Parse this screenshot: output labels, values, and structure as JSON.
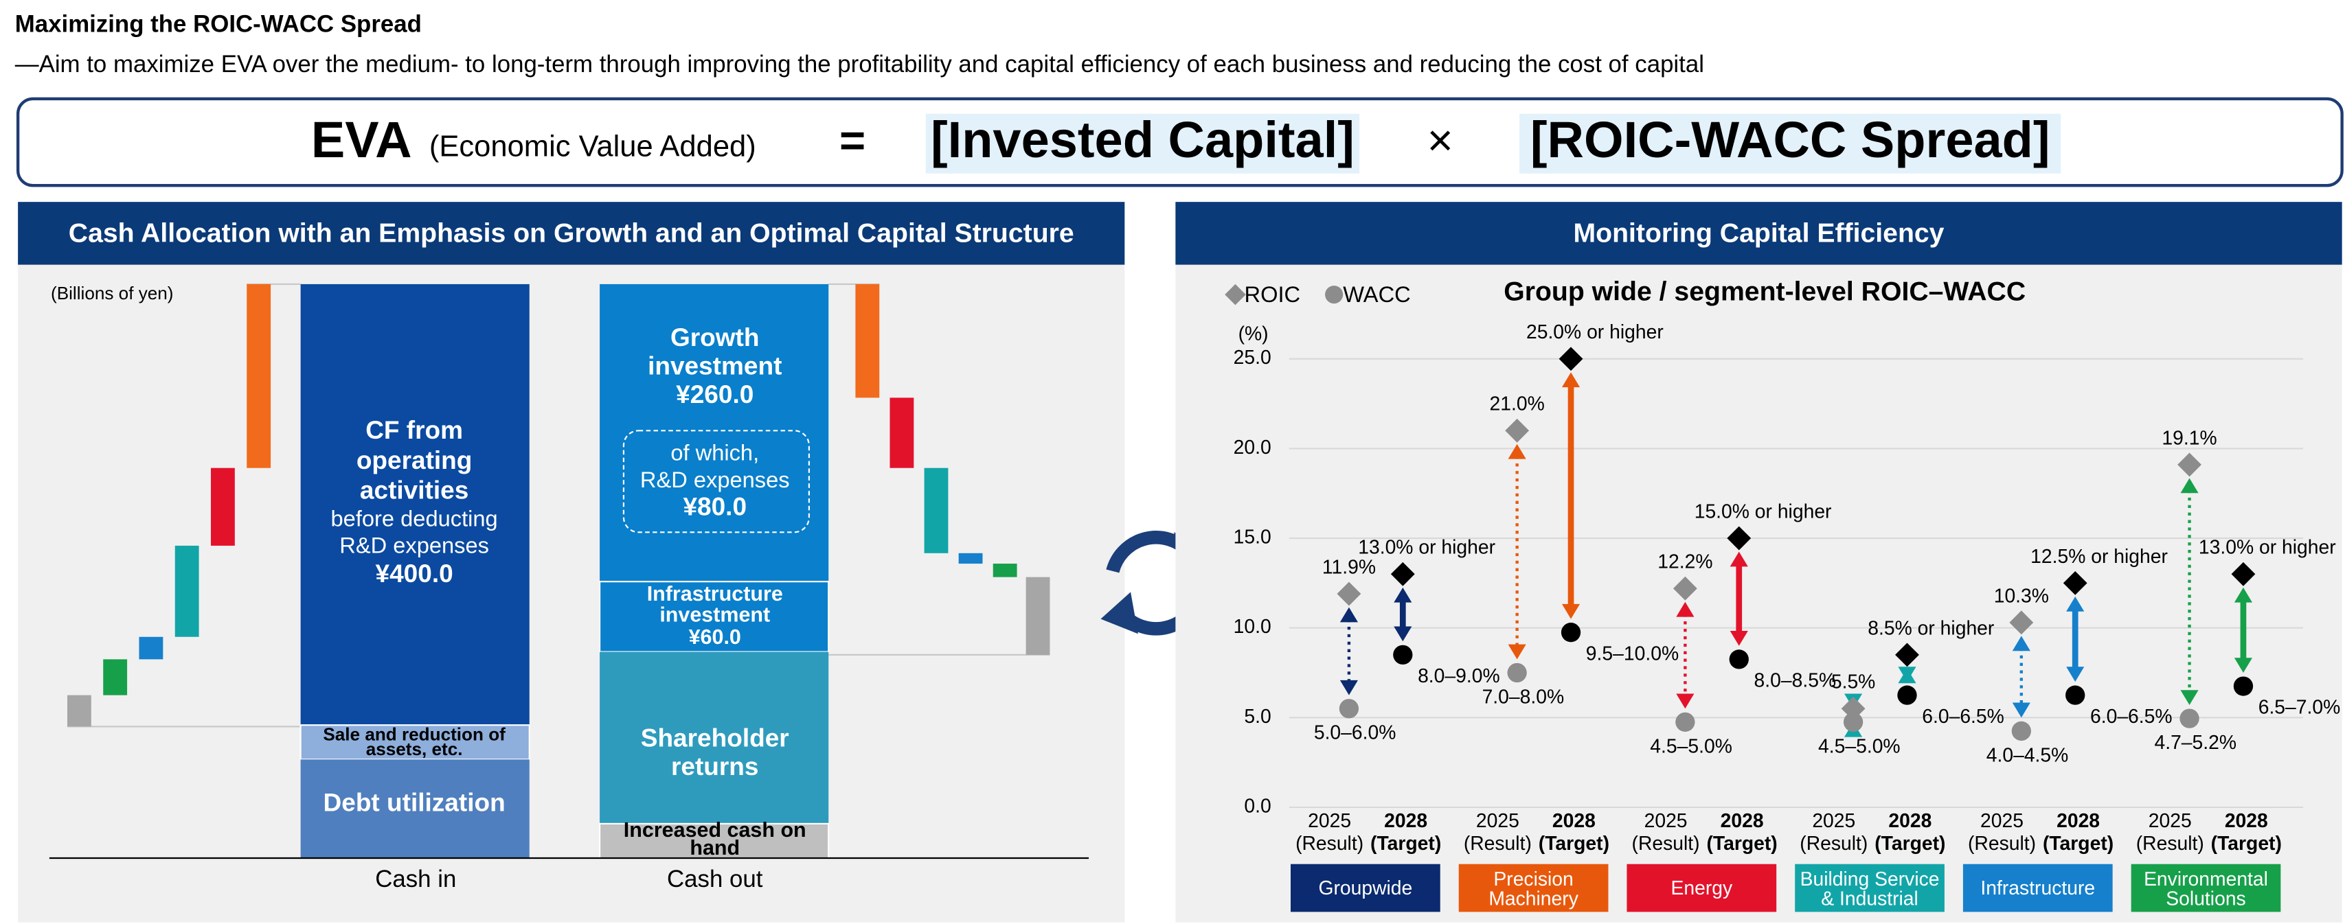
{
  "header": {
    "title": "Maximizing the ROIC-WACC Spread",
    "subtitle": "—Aim to maximize EVA over the medium- to long-term through improving the profitability and capital efficiency of each business and reducing the cost of capital"
  },
  "formula": {
    "eva": "EVA",
    "eva_note": "(Economic Value Added)",
    "equals": "=",
    "invested_capital": "[Invested Capital]",
    "times": "×",
    "spread": "[ROIC-WACC Spread]"
  },
  "cash_allocation": {
    "title": "Cash Allocation with an Emphasis on Growth and an Optimal Capital Structure",
    "unit": "(Billions of yen)",
    "cash_in": {
      "label": "Cash in",
      "operating_cf": {
        "lines": [
          "CF from",
          "operating",
          "activities"
        ],
        "note": [
          "before deducting",
          "R&D expenses"
        ],
        "amount": "¥400.0"
      },
      "asset_sales": [
        "Sale and reduction of",
        "assets, etc."
      ],
      "debt": "Debt utilization"
    },
    "cash_out": {
      "label": "Cash out",
      "growth": {
        "lines": [
          "Growth",
          "investment"
        ],
        "amount": "¥260.0",
        "rd_lines": [
          "of which,",
          "R&D expenses"
        ],
        "rd_amount": "¥80.0"
      },
      "infrastructure": {
        "lines": [
          "Infrastructure",
          "investment"
        ],
        "amount": "¥60.0"
      },
      "shareholder": [
        "Shareholder",
        "returns"
      ],
      "cash": [
        "Increased cash on",
        "hand"
      ]
    }
  },
  "monitoring": {
    "title": "Monitoring Capital Efficiency"
  },
  "chart_data": {
    "type": "dot",
    "title": "Group wide / segment-level ROIC–WACC",
    "y_unit": "(%)",
    "ylim": [
      0,
      25
    ],
    "yticks": [
      {
        "value": 0,
        "label": "0.0"
      },
      {
        "value": 5,
        "label": "5.0"
      },
      {
        "value": 10,
        "label": "10.0"
      },
      {
        "value": 15,
        "label": "15.0"
      },
      {
        "value": 20,
        "label": "20.0"
      },
      {
        "value": 25,
        "label": "25.0"
      }
    ],
    "grid": true,
    "result_color": "#8c8c8c",
    "target_color": "#000000",
    "periods": [
      [
        "2025",
        "(Result)"
      ],
      [
        "2028",
        "(Target)"
      ]
    ],
    "categories": [
      [
        "Groupwide"
      ],
      [
        "Precision",
        "Machinery"
      ],
      [
        "Energy"
      ],
      [
        "Building Service",
        "& Industrial"
      ],
      [
        "Infrastructure"
      ],
      [
        "Environmental",
        "Solutions"
      ]
    ],
    "colors": [
      "#0b2a6f",
      "#e8580c",
      "#e3122b",
      "#12a5a8",
      "#1680cc",
      "#17a04a"
    ],
    "series": [
      {
        "name": "ROIC",
        "marker": "diamond",
        "result": [
          11.9,
          21.0,
          12.2,
          5.5,
          10.3,
          19.1
        ],
        "result_labels": [
          "11.9%",
          "21.0%",
          "12.2%",
          "5.5%",
          "10.3%",
          "19.1%"
        ],
        "target": [
          13.0,
          25.0,
          15.0,
          8.5,
          12.5,
          13.0
        ],
        "target_labels": [
          "13.0% or higher",
          "25.0% or higher",
          "15.0% or higher",
          "8.5% or higher",
          "12.5% or higher",
          "13.0% or higher"
        ]
      },
      {
        "name": "WACC",
        "marker": "circle",
        "result": [
          5.5,
          7.5,
          4.75,
          4.75,
          4.25,
          4.95
        ],
        "result_labels": [
          "5.0–6.0%",
          "7.0–8.0%",
          "4.5–5.0%",
          "4.5–5.0%",
          "4.0–4.5%",
          "4.7–5.2%"
        ],
        "target": [
          8.5,
          9.75,
          8.25,
          6.25,
          6.25,
          6.75
        ],
        "target_labels": [
          "8.0–9.0%",
          "9.5–10.0%",
          "8.0–8.5%",
          "6.0–6.5%",
          "6.0–6.5%",
          "6.5–7.0%"
        ]
      }
    ]
  }
}
